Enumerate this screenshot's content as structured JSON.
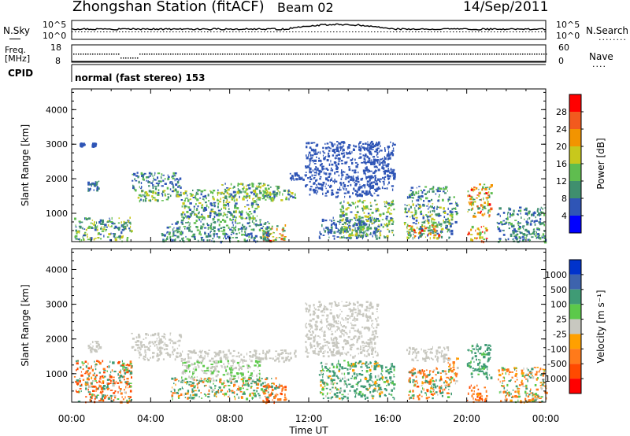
{
  "header": {
    "station": "Zhongshan Station (fitACF)",
    "beam": "Beam 02",
    "date": "14/Sep/2011"
  },
  "noise_panel": {
    "left_label": "N.Sky",
    "right_label": "N.Search",
    "left_ticks": [
      "10^5",
      "10^0"
    ],
    "right_ticks": [
      "10^5",
      "10^0"
    ],
    "right_dots": "........"
  },
  "freq_panel": {
    "left_label_line1": "Freq.",
    "left_label_line2": "[MHz]",
    "left_ticks": [
      "18",
      "8"
    ],
    "right_label": "Nave",
    "right_ticks": [
      "60",
      "0"
    ],
    "right_dots": "...."
  },
  "cpid": {
    "label": "CPID",
    "text": "normal (fast stereo) 153"
  },
  "colors": {
    "power": [
      "#0000ff",
      "#2f55b6",
      "#3f8f6e",
      "#5fbd4f",
      "#c8c81c",
      "#f29400",
      "#f25a1e",
      "#ff0000"
    ],
    "velocity_pos": [
      "#0033cc",
      "#3d63ad",
      "#3f9b75",
      "#5cc94a"
    ],
    "velocity_gray": "#c8c8c0",
    "velocity_neg": [
      "#ffa000",
      "#ff7a1a",
      "#ff4a00",
      "#ff0000"
    ]
  },
  "chart_data": [
    {
      "type": "heatmap",
      "name": "power",
      "xlabel": "",
      "ylabel": "Slant Range [km]",
      "xlim": [
        0,
        24
      ],
      "ylim": [
        180,
        4600
      ],
      "yticks": [
        "4000",
        "3000",
        "2000",
        "1000"
      ],
      "colorbar": {
        "label": "Power [dB]",
        "range": [
          0,
          32
        ],
        "ticks": [
          "28",
          "24",
          "20",
          "16",
          "12",
          "8",
          "4"
        ]
      },
      "regions": [
        {
          "x0": 0.1,
          "x1": 3.0,
          "y0": 200,
          "y1": 900,
          "v0": 4,
          "v1": 20
        },
        {
          "x0": 0.8,
          "x1": 1.4,
          "y0": 1650,
          "y1": 1950,
          "v0": 6,
          "v1": 10
        },
        {
          "x0": 0.4,
          "x1": 0.6,
          "y0": 2950,
          "y1": 3050,
          "v0": 4,
          "v1": 8
        },
        {
          "x0": 1.0,
          "x1": 1.2,
          "y0": 2950,
          "y1": 3050,
          "v0": 4,
          "v1": 8
        },
        {
          "x0": 3.3,
          "x1": 11.3,
          "y0": 1380,
          "y1": 1700,
          "v0": 5,
          "v1": 20
        },
        {
          "x0": 3.0,
          "x1": 5.5,
          "y0": 1700,
          "y1": 2200,
          "v0": 4,
          "v1": 14
        },
        {
          "x0": 5.5,
          "x1": 9.5,
          "y0": 800,
          "y1": 1400,
          "v0": 5,
          "v1": 18
        },
        {
          "x0": 9.6,
          "x1": 10.8,
          "y0": 200,
          "y1": 700,
          "v0": 10,
          "v1": 30
        },
        {
          "x0": 4.5,
          "x1": 10.0,
          "y0": 200,
          "y1": 800,
          "v0": 4,
          "v1": 14
        },
        {
          "x0": 7.5,
          "x1": 10.5,
          "y0": 1400,
          "y1": 1900,
          "v0": 6,
          "v1": 20
        },
        {
          "x0": 11.0,
          "x1": 11.8,
          "y0": 2000,
          "y1": 2200,
          "v0": 4,
          "v1": 8
        },
        {
          "x0": 11.8,
          "x1": 15.5,
          "y0": 1500,
          "y1": 3100,
          "v0": 4,
          "v1": 8
        },
        {
          "x0": 12.5,
          "x1": 15.5,
          "y0": 300,
          "y1": 900,
          "v0": 4,
          "v1": 10
        },
        {
          "x0": 13.5,
          "x1": 16.3,
          "y0": 300,
          "y1": 1400,
          "v0": 5,
          "v1": 20
        },
        {
          "x0": 14.8,
          "x1": 16.3,
          "y0": 1700,
          "y1": 3100,
          "v0": 4,
          "v1": 8
        },
        {
          "x0": 16.9,
          "x1": 19.1,
          "y0": 1380,
          "y1": 1800,
          "v0": 4,
          "v1": 16
        },
        {
          "x0": 16.8,
          "x1": 19.2,
          "y0": 300,
          "y1": 1300,
          "v0": 4,
          "v1": 20
        },
        {
          "x0": 17.0,
          "x1": 18.6,
          "y0": 300,
          "y1": 700,
          "v0": 8,
          "v1": 30
        },
        {
          "x0": 19.0,
          "x1": 19.5,
          "y0": 700,
          "y1": 1500,
          "v0": 4,
          "v1": 14
        },
        {
          "x0": 20.0,
          "x1": 21.2,
          "y0": 900,
          "y1": 1900,
          "v0": 8,
          "v1": 30
        },
        {
          "x0": 20.0,
          "x1": 21.0,
          "y0": 200,
          "y1": 650,
          "v0": 14,
          "v1": 30
        },
        {
          "x0": 21.5,
          "x1": 24.0,
          "y0": 200,
          "y1": 1200,
          "v0": 4,
          "v1": 14
        }
      ]
    },
    {
      "type": "heatmap",
      "name": "velocity",
      "xlabel": "Time UT",
      "ylabel": "Slant Range [km]",
      "xlim": [
        0,
        24
      ],
      "ylim": [
        180,
        4600
      ],
      "xticks": [
        "00:00",
        "04:00",
        "08:00",
        "12:00",
        "16:00",
        "20:00",
        "00:00"
      ],
      "yticks": [
        "4000",
        "3000",
        "2000",
        "1000"
      ],
      "colorbar": {
        "label": "Velocity [m s⁻¹]",
        "range": [
          -1250,
          1250
        ],
        "ticks": [
          "1000",
          "500",
          "100",
          "25",
          "-25",
          "-100",
          "-500",
          "-1000"
        ]
      },
      "regions": [
        {
          "x0": 0.1,
          "x1": 3.0,
          "y0": 200,
          "y1": 1400,
          "v0": -1000,
          "v1": 500
        },
        {
          "x0": 0.8,
          "x1": 1.4,
          "y0": 1650,
          "y1": 1950,
          "v0": -20,
          "v1": 20
        },
        {
          "x0": 3.3,
          "x1": 11.3,
          "y0": 1380,
          "y1": 1700,
          "v0": -20,
          "v1": 20
        },
        {
          "x0": 3.0,
          "x1": 5.5,
          "y0": 1700,
          "y1": 2200,
          "v0": -20,
          "v1": 20
        },
        {
          "x0": 5.5,
          "x1": 9.5,
          "y0": 800,
          "y1": 1400,
          "v0": -20,
          "v1": 60
        },
        {
          "x0": 5.0,
          "x1": 10.5,
          "y0": 300,
          "y1": 900,
          "v0": -300,
          "v1": 400
        },
        {
          "x0": 9.6,
          "x1": 10.8,
          "y0": 200,
          "y1": 700,
          "v0": -800,
          "v1": -100
        },
        {
          "x0": 11.8,
          "x1": 15.5,
          "y0": 1500,
          "y1": 3100,
          "v0": -20,
          "v1": 20
        },
        {
          "x0": 12.5,
          "x1": 16.3,
          "y0": 300,
          "y1": 1400,
          "v0": -100,
          "v1": 500
        },
        {
          "x0": 16.9,
          "x1": 19.1,
          "y0": 1380,
          "y1": 1800,
          "v0": -20,
          "v1": 20
        },
        {
          "x0": 17.0,
          "x1": 19.2,
          "y0": 300,
          "y1": 1200,
          "v0": -600,
          "v1": 300
        },
        {
          "x0": 19.0,
          "x1": 19.5,
          "y0": 700,
          "y1": 1500,
          "v0": -300,
          "v1": 100
        },
        {
          "x0": 20.0,
          "x1": 21.2,
          "y0": 900,
          "y1": 1900,
          "v0": 50,
          "v1": 500
        },
        {
          "x0": 20.0,
          "x1": 21.0,
          "y0": 200,
          "y1": 700,
          "v0": -800,
          "v1": -50
        },
        {
          "x0": 21.5,
          "x1": 24.0,
          "y0": 200,
          "y1": 1200,
          "v0": -300,
          "v1": 200
        }
      ]
    }
  ]
}
